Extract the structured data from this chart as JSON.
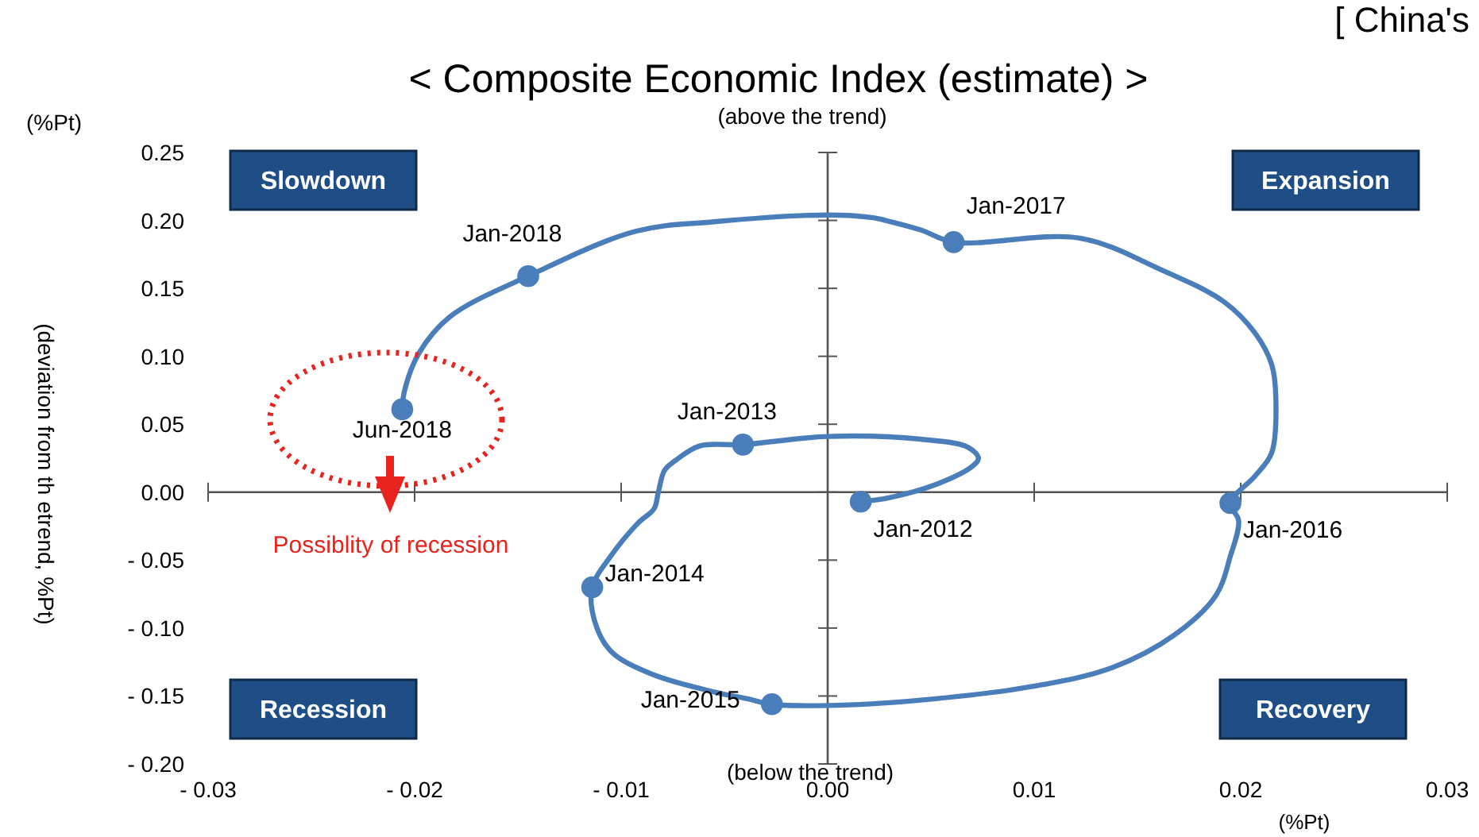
{
  "chart_data": {
    "type": "line",
    "title": "< Composite Economic Index (estimate) >",
    "xlabel": "(%Pt)",
    "ylabel": "(deviation from th etrend, %Pt)",
    "annotations": [
      "[ China's",
      "(%Pt)",
      "(above the trend)",
      "(below the trend)",
      "Slowdown",
      "Expansion",
      "Recession",
      "Recovery",
      "Possiblity of recession"
    ],
    "xlim": [
      -0.03,
      0.03
    ],
    "ylim": [
      -0.2,
      0.25
    ],
    "xticks": [
      {
        "value": -0.03,
        "label": "- 0.03"
      },
      {
        "value": -0.02,
        "label": "- 0.02"
      },
      {
        "value": -0.01,
        "label": "- 0.01"
      },
      {
        "value": 0,
        "label": "0.00"
      },
      {
        "value": 0.01,
        "label": "0.01"
      },
      {
        "value": 0.02,
        "label": "0.02"
      },
      {
        "value": 0.03,
        "label": "0.03"
      }
    ],
    "yticks": [
      {
        "value": -0.2,
        "label": "- 0.20"
      },
      {
        "value": -0.15,
        "label": "- 0.15"
      },
      {
        "value": -0.1,
        "label": "- 0.10"
      },
      {
        "value": -0.05,
        "label": "- 0.05"
      },
      {
        "value": 0,
        "label": "0.00"
      },
      {
        "value": 0.05,
        "label": "0.05"
      },
      {
        "value": 0.1,
        "label": "0.10"
      },
      {
        "value": 0.15,
        "label": "0.15"
      },
      {
        "value": 0.2,
        "label": "0.20"
      },
      {
        "value": 0.25,
        "label": "0.25"
      }
    ],
    "series": [
      {
        "color": "#4a7ebb",
        "marker": "none",
        "line_style": "solid",
        "x": [
          0.0016,
          0.003,
          0.0053,
          0.007,
          0.0073,
          0.0068,
          0.0045,
          0,
          -0.0041,
          -0.0062,
          -0.0074,
          -0.0079,
          -0.0082,
          -0.0084,
          -0.0092,
          -0.0105,
          -0.0114,
          -0.0113,
          -0.0105,
          -0.0085,
          -0.0055,
          -0.0039,
          -0.0027,
          0,
          0.0045,
          0.0099,
          0.0138,
          0.0168,
          0.0188,
          0.0195,
          0.0199,
          0.0195,
          0.0207,
          0.0215,
          0.0217,
          0.0215,
          0.0207,
          0.0192,
          0.0161,
          0.0122,
          0.0061,
          0.0045,
          0.0028,
          0.0022,
          0,
          -0.0055,
          -0.0093,
          -0.0145,
          -0.0183,
          -0.0198,
          -0.0205,
          -0.0206
        ],
        "values": [
          -0.007,
          -0.004,
          0.006,
          0.019,
          0.025,
          0.033,
          0.039,
          0.041,
          0.035,
          0.034,
          0.023,
          0.016,
          0,
          -0.012,
          -0.023,
          -0.047,
          -0.07,
          -0.094,
          -0.117,
          -0.134,
          -0.147,
          -0.152,
          -0.156,
          -0.157,
          -0.153,
          -0.143,
          -0.129,
          -0.105,
          -0.076,
          -0.047,
          -0.021,
          -0.008,
          0.012,
          0.029,
          0.07,
          0.094,
          0.117,
          0.14,
          0.164,
          0.187,
          0.184,
          0.193,
          0.2,
          0.202,
          0.204,
          0.199,
          0.192,
          0.159,
          0.129,
          0.102,
          0.074,
          0.061
        ]
      },
      {
        "type": "scatter",
        "color": "#4a7ebb",
        "marker": "circle",
        "x": [
          0.0016,
          -0.0041,
          -0.0114,
          -0.0027,
          0.0195,
          0.0061,
          -0.0145,
          -0.0206
        ],
        "values": [
          -0.007,
          0.035,
          -0.07,
          -0.156,
          -0.008,
          0.184,
          0.159,
          0.061
        ],
        "value_labels": [
          "Jan-2012",
          "Jan-2013",
          "Jan-2014",
          "Jan-2015",
          "Jan-2016",
          "Jan-2017",
          "Jan-2018",
          "Jun-2018"
        ]
      }
    ]
  }
}
